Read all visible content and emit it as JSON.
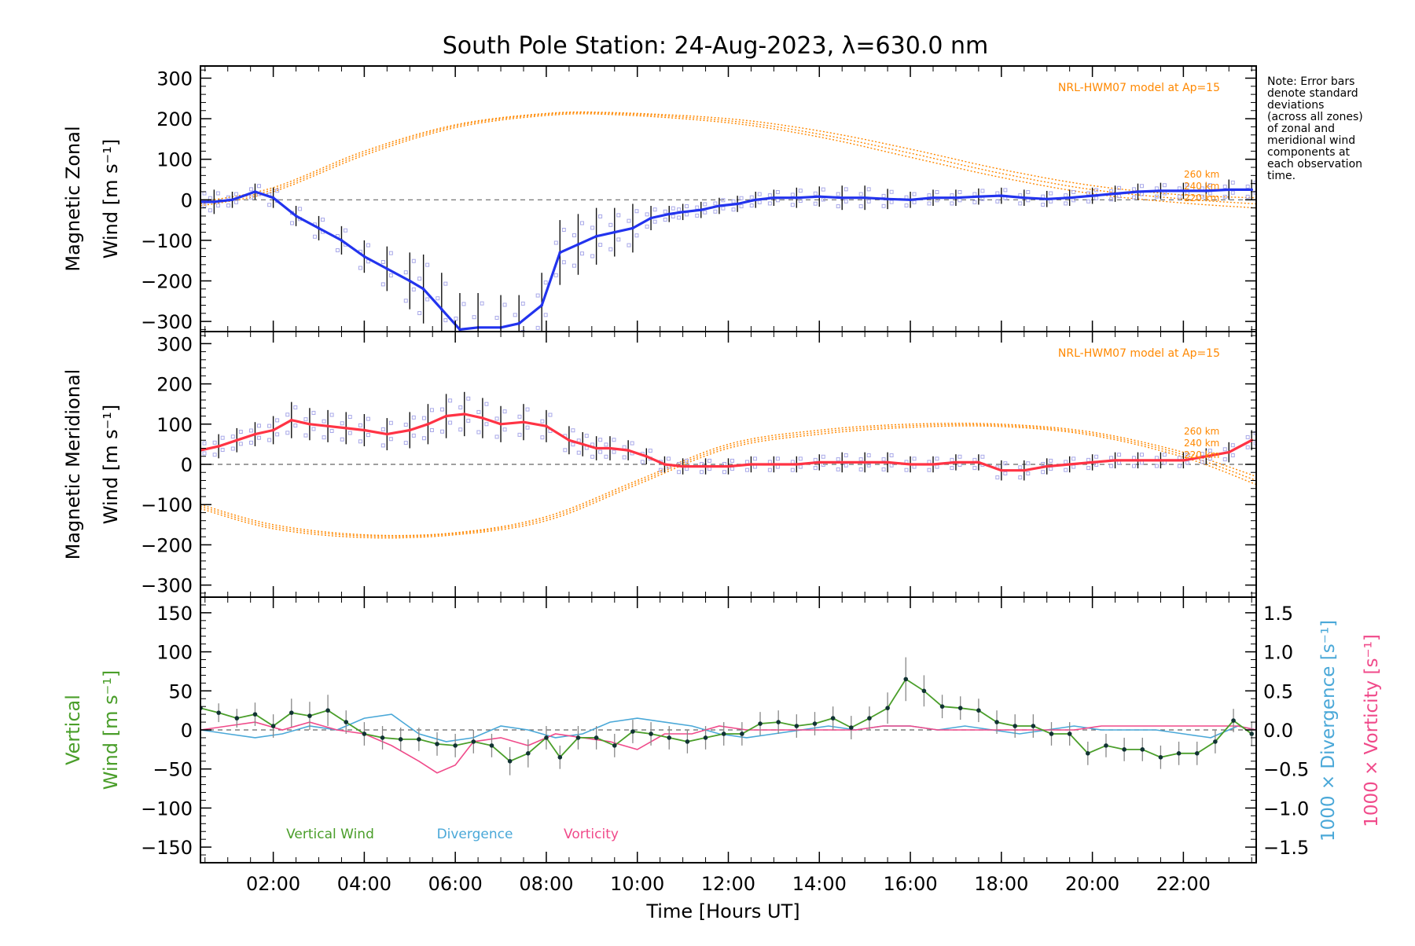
{
  "chart_data": {
    "type": "line",
    "title": "South Pole Station: 24-Aug-2023, λ=630.0 nm",
    "xlabel": "Time [Hours UT]",
    "xlim": [
      0.4,
      23.6
    ],
    "x_ticks": [
      2,
      4,
      6,
      8,
      10,
      12,
      14,
      16,
      18,
      20,
      22
    ],
    "x_tick_labels": [
      "02:00",
      "04:00",
      "06:00",
      "08:00",
      "10:00",
      "12:00",
      "14:00",
      "16:00",
      "18:00",
      "20:00",
      "22:00"
    ],
    "note": [
      "Note: Error bars",
      "denote standard",
      "deviations",
      "(across all zones)",
      "of zonal and",
      "meridional wind",
      "components at",
      "each observation",
      "time."
    ],
    "colors": {
      "zonal": "#2233ee",
      "meridional": "#ff3344",
      "vertical": "#4a9e2a",
      "divergence": "#4aa8d8",
      "vorticity": "#f04a8a",
      "model": "#ff8800",
      "zone": "#a8a8e8",
      "errorbar": "#111111"
    },
    "panels": [
      {
        "id": "zonal",
        "ylabel_line1": "Magnetic Zonal",
        "ylabel_line2": "Wind",
        "ylabel_units": "[m s⁻¹]",
        "ylim": [
          -325,
          330
        ],
        "y_ticks": [
          300,
          200,
          100,
          0,
          -100,
          -200,
          -300
        ],
        "y_tick_labels": [
          "300",
          "200",
          "100",
          "0",
          "−100",
          "−200",
          "−300"
        ],
        "model_label": "NRL-HWM07 model at Ap=15",
        "model_alt_labels": [
          "260 km",
          "240 km",
          "220 km"
        ],
        "series": {
          "name": "Magnetic Zonal Wind",
          "x": [
            0.4,
            0.7,
            1.1,
            1.6,
            2.0,
            2.5,
            3.0,
            3.5,
            4.0,
            4.5,
            5.0,
            5.3,
            5.7,
            6.1,
            6.5,
            7.0,
            7.4,
            7.9,
            8.3,
            8.7,
            9.1,
            9.5,
            9.9,
            10.3,
            10.7,
            11.0,
            11.4,
            11.8,
            12.2,
            12.6,
            13.0,
            13.5,
            14.0,
            14.5,
            15.0,
            15.5,
            16.0,
            16.5,
            17.0,
            17.5,
            18.0,
            18.5,
            19.0,
            19.5,
            20.0,
            20.5,
            21.0,
            21.5,
            22.0,
            22.5,
            23.0,
            23.5
          ],
          "y": [
            -5,
            -5,
            0,
            20,
            5,
            -40,
            -70,
            -100,
            -140,
            -170,
            -200,
            -220,
            -270,
            -320,
            -315,
            -315,
            -305,
            -260,
            -130,
            -110,
            -90,
            -80,
            -70,
            -45,
            -35,
            -30,
            -25,
            -15,
            -10,
            0,
            5,
            5,
            8,
            5,
            5,
            2,
            0,
            5,
            5,
            8,
            10,
            5,
            2,
            5,
            10,
            15,
            20,
            22,
            22,
            22,
            25,
            25
          ],
          "err": [
            30,
            30,
            20,
            20,
            25,
            25,
            30,
            35,
            40,
            55,
            70,
            85,
            90,
            90,
            85,
            80,
            70,
            80,
            80,
            75,
            70,
            60,
            60,
            30,
            20,
            20,
            20,
            20,
            20,
            20,
            20,
            25,
            25,
            30,
            30,
            25,
            20,
            20,
            20,
            20,
            20,
            20,
            20,
            20,
            20,
            20,
            20,
            20,
            20,
            20,
            25,
            25
          ]
        },
        "model_curves": [
          {
            "name": "260 km",
            "x": [
              0.4,
              2,
              4,
              6,
              8,
              9.5,
              12,
              14,
              16,
              18,
              20,
              22,
              23.6
            ],
            "y": [
              -5,
              30,
              120,
              185,
              213,
              215,
              200,
              170,
              125,
              75,
              35,
              12,
              5
            ]
          },
          {
            "name": "240 km",
            "x": [
              0.4,
              2,
              4,
              6,
              8,
              9.5,
              12,
              14,
              16,
              18,
              20,
              22,
              23.6
            ],
            "y": [
              -10,
              25,
              115,
              182,
              211,
              213,
              195,
              162,
              115,
              65,
              25,
              2,
              -10
            ]
          },
          {
            "name": "220 km",
            "x": [
              0.4,
              2,
              4,
              6,
              8,
              9.5,
              12,
              14,
              16,
              18,
              20,
              22,
              23.6
            ],
            "y": [
              -15,
              20,
              110,
              178,
              208,
              210,
              190,
              155,
              105,
              55,
              15,
              -8,
              -20
            ]
          }
        ]
      },
      {
        "id": "meridional",
        "ylabel_line1": "Magnetic Meridional",
        "ylabel_line2": "Wind",
        "ylabel_units": "[m s⁻¹]",
        "ylim": [
          -330,
          330
        ],
        "y_ticks": [
          300,
          200,
          100,
          0,
          -100,
          -200,
          -300
        ],
        "y_tick_labels": [
          "300",
          "200",
          "100",
          "0",
          "−100",
          "−200",
          "−300"
        ],
        "model_label": "NRL-HWM07 model at Ap=15",
        "model_alt_labels": [
          "260 km",
          "240 km",
          "220 km"
        ],
        "series": {
          "name": "Magnetic Meridional Wind",
          "x": [
            0.4,
            0.8,
            1.2,
            1.6,
            2.0,
            2.4,
            2.8,
            3.2,
            3.6,
            4.0,
            4.5,
            5.0,
            5.4,
            5.8,
            6.2,
            6.6,
            7.0,
            7.5,
            8.0,
            8.5,
            8.8,
            9.1,
            9.4,
            9.8,
            10.2,
            10.6,
            11.0,
            11.5,
            12.0,
            12.5,
            13.0,
            13.5,
            14.0,
            14.5,
            15.0,
            15.5,
            16.0,
            16.5,
            17.0,
            17.5,
            18.0,
            18.5,
            19.0,
            19.5,
            20.0,
            20.5,
            21.0,
            21.5,
            22.0,
            22.5,
            23.0,
            23.5
          ],
          "y": [
            35,
            45,
            60,
            75,
            85,
            110,
            100,
            95,
            90,
            85,
            75,
            85,
            100,
            120,
            125,
            115,
            100,
            105,
            95,
            60,
            50,
            40,
            40,
            35,
            20,
            0,
            -5,
            -5,
            -5,
            0,
            0,
            0,
            5,
            5,
            5,
            5,
            0,
            0,
            5,
            5,
            -15,
            -15,
            -5,
            0,
            5,
            10,
            10,
            10,
            10,
            20,
            30,
            60
          ],
          "err": [
            25,
            30,
            30,
            30,
            35,
            45,
            40,
            40,
            40,
            40,
            40,
            45,
            50,
            55,
            55,
            50,
            45,
            45,
            40,
            35,
            30,
            30,
            30,
            25,
            20,
            20,
            20,
            20,
            20,
            20,
            20,
            20,
            20,
            25,
            25,
            25,
            20,
            20,
            20,
            20,
            25,
            25,
            20,
            20,
            20,
            20,
            20,
            20,
            20,
            20,
            25,
            25
          ]
        },
        "model_curves": [
          {
            "name": "260 km",
            "x": [
              0.4,
              2,
              4,
              6,
              8,
              10,
              12,
              14,
              16,
              18,
              20,
              22,
              23.6
            ],
            "y": [
              -100,
              -150,
              -175,
              -170,
              -130,
              -40,
              50,
              85,
              100,
              100,
              80,
              30,
              -30
            ]
          },
          {
            "name": "240 km",
            "x": [
              0.4,
              2,
              4,
              6,
              8,
              10,
              12,
              14,
              16,
              18,
              20,
              22,
              23.6
            ],
            "y": [
              -105,
              -155,
              -178,
              -172,
              -135,
              -45,
              45,
              80,
              96,
              97,
              76,
              24,
              -40
            ]
          },
          {
            "name": "220 km",
            "x": [
              0.4,
              2,
              4,
              6,
              8,
              10,
              12,
              14,
              16,
              18,
              20,
              22,
              23.6
            ],
            "y": [
              -110,
              -160,
              -182,
              -175,
              -140,
              -50,
              40,
              75,
              92,
              94,
              72,
              18,
              -50
            ]
          }
        ]
      },
      {
        "id": "vertical",
        "ylabel_line1": "Vertical",
        "ylabel_line2": "Wind",
        "ylabel_units": "[m s⁻¹]",
        "ylim": [
          -170,
          170
        ],
        "y_ticks": [
          150,
          100,
          50,
          0,
          -50,
          -100,
          -150
        ],
        "y_tick_labels": [
          "150",
          "100",
          "50",
          "0",
          "−50",
          "−100",
          "−150"
        ],
        "right_ylim": [
          -1.7,
          1.7
        ],
        "right_ticks": [
          1.5,
          1.0,
          0.5,
          0.0,
          -0.5,
          -1.0,
          -1.5
        ],
        "right_tick_labels": [
          "1.5",
          "1.0",
          "0.5",
          "0.0",
          "−0.5",
          "−1.0",
          "−1.5"
        ],
        "right_label_divergence": "1000 × Divergence [s⁻¹]",
        "right_label_vorticity": "1000 × Vorticity [s⁻¹]",
        "legend": [
          "Vertical Wind",
          "Divergence",
          "Vorticity"
        ],
        "series": [
          {
            "name": "Vertical Wind",
            "x": [
              0.4,
              0.8,
              1.2,
              1.6,
              2.0,
              2.4,
              2.8,
              3.2,
              3.6,
              4.0,
              4.4,
              4.8,
              5.2,
              5.6,
              6.0,
              6.4,
              6.8,
              7.2,
              7.6,
              8.0,
              8.3,
              8.7,
              9.1,
              9.5,
              9.9,
              10.3,
              10.7,
              11.1,
              11.5,
              11.9,
              12.3,
              12.7,
              13.1,
              13.5,
              13.9,
              14.3,
              14.7,
              15.1,
              15.5,
              15.9,
              16.3,
              16.7,
              17.1,
              17.5,
              17.9,
              18.3,
              18.7,
              19.1,
              19.5,
              19.9,
              20.3,
              20.7,
              21.1,
              21.5,
              21.9,
              22.3,
              22.7,
              23.1,
              23.5
            ],
            "y": [
              28,
              22,
              15,
              20,
              5,
              22,
              18,
              25,
              10,
              -5,
              -10,
              -12,
              -12,
              -18,
              -20,
              -15,
              -20,
              -40,
              -30,
              -10,
              -35,
              -10,
              -10,
              -20,
              -2,
              -5,
              -10,
              -15,
              -10,
              -5,
              -5,
              8,
              10,
              5,
              8,
              15,
              3,
              15,
              28,
              65,
              50,
              30,
              28,
              25,
              10,
              5,
              5,
              -5,
              -5,
              -30,
              -20,
              -25,
              -25,
              -35,
              -30,
              -30,
              -15,
              12,
              -5
            ],
            "err": [
              12,
              12,
              12,
              15,
              15,
              18,
              18,
              20,
              15,
              15,
              15,
              15,
              15,
              15,
              15,
              15,
              15,
              18,
              18,
              15,
              15,
              15,
              15,
              15,
              15,
              15,
              15,
              15,
              15,
              15,
              15,
              15,
              15,
              15,
              15,
              15,
              15,
              15,
              20,
              28,
              20,
              15,
              15,
              15,
              15,
              15,
              15,
              15,
              15,
              15,
              15,
              15,
              15,
              15,
              15,
              15,
              15,
              15,
              15
            ]
          },
          {
            "name": "Divergence",
            "x": [
              0.4,
              1.0,
              1.6,
              2.2,
              2.8,
              3.4,
              4.0,
              4.6,
              5.2,
              5.8,
              6.4,
              7.0,
              7.6,
              8.2,
              8.8,
              9.4,
              10.0,
              10.6,
              11.2,
              11.8,
              12.4,
              13.0,
              13.6,
              14.2,
              14.8,
              15.4,
              16.0,
              16.6,
              17.2,
              17.8,
              18.4,
              19.0,
              19.6,
              20.2,
              20.8,
              21.4,
              22.0,
              22.6,
              23.2,
              23.6
            ],
            "y": [
              0.0,
              -0.05,
              -0.1,
              -0.05,
              0.05,
              0.0,
              0.15,
              0.2,
              -0.05,
              -0.15,
              -0.1,
              0.05,
              0.0,
              -0.1,
              -0.05,
              0.1,
              0.15,
              0.1,
              0.05,
              -0.05,
              -0.1,
              -0.05,
              0.0,
              0.05,
              0.0,
              0.05,
              0.05,
              0.0,
              0.05,
              0.0,
              -0.05,
              0.0,
              0.05,
              0.0,
              0.0,
              0.0,
              -0.05,
              -0.1,
              0.05,
              0.0
            ]
          },
          {
            "name": "Vorticity",
            "x": [
              0.4,
              1.0,
              1.6,
              2.2,
              2.8,
              3.4,
              4.0,
              4.6,
              5.2,
              5.6,
              6.0,
              6.4,
              7.0,
              7.6,
              8.2,
              8.8,
              9.4,
              10.0,
              10.6,
              11.2,
              11.8,
              12.4,
              13.0,
              13.6,
              14.2,
              14.8,
              15.4,
              16.0,
              16.6,
              17.2,
              17.8,
              18.4,
              19.0,
              19.6,
              20.2,
              20.8,
              21.4,
              22.0,
              22.6,
              23.2,
              23.6
            ],
            "y": [
              0.0,
              0.05,
              0.1,
              0.0,
              0.1,
              0.0,
              -0.05,
              -0.2,
              -0.4,
              -0.55,
              -0.45,
              -0.15,
              -0.1,
              -0.2,
              -0.05,
              -0.1,
              -0.15,
              -0.25,
              -0.05,
              -0.05,
              0.05,
              0.0,
              0.0,
              0.0,
              0.0,
              0.0,
              0.05,
              0.05,
              0.0,
              0.0,
              0.0,
              0.0,
              0.0,
              0.0,
              0.05,
              0.05,
              0.05,
              0.05,
              0.05,
              0.05,
              0.0
            ]
          }
        ]
      }
    ]
  }
}
